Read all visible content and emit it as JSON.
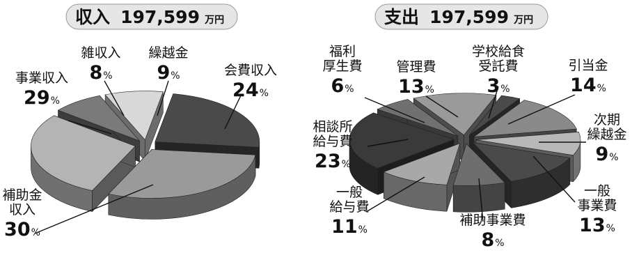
{
  "chart_data": [
    {
      "type": "pie",
      "title": "収入",
      "total": "197,599",
      "unit": "万円",
      "slices": [
        {
          "label": [
            "会費収入"
          ],
          "value": 24,
          "color": "#4a4a4a"
        },
        {
          "label": [
            "補助金",
            "収入"
          ],
          "value": 30,
          "color": "#9a9a9a"
        },
        {
          "label": [
            "事業収入"
          ],
          "value": 29,
          "color": "#b4b4b4"
        },
        {
          "label": [
            "雑収入"
          ],
          "value": 8,
          "color": "#7a7a7a"
        },
        {
          "label": [
            "繰越金"
          ],
          "value": 9,
          "color": "#d8d8d8"
        }
      ]
    },
    {
      "type": "pie",
      "title": "支出",
      "total": "197,599",
      "unit": "万円",
      "slices": [
        {
          "label": [
            "学校給食",
            "受託費"
          ],
          "value": 3,
          "color": "#4a4a4a"
        },
        {
          "label": [
            "引当金"
          ],
          "value": 14,
          "color": "#8a8a8a"
        },
        {
          "label": [
            "次期",
            "繰越金"
          ],
          "value": 9,
          "color": "#b8b8b8"
        },
        {
          "label": [
            "一般",
            "事業費"
          ],
          "value": 13,
          "color": "#4a4a4a"
        },
        {
          "label": [
            "補助事業費"
          ],
          "value": 8,
          "color": "#6e6e6e"
        },
        {
          "label": [
            "一般",
            "給与費"
          ],
          "value": 11,
          "color": "#a8a8a8"
        },
        {
          "label": [
            "相談所",
            "給与費"
          ],
          "value": 23,
          "color": "#3a3a3a"
        },
        {
          "label": [
            "福利",
            "厚生費"
          ],
          "value": 6,
          "color": "#707070"
        },
        {
          "label": [
            "管理費"
          ],
          "value": 13,
          "color": "#9a9a9a"
        }
      ]
    }
  ],
  "percent_sign": "%"
}
